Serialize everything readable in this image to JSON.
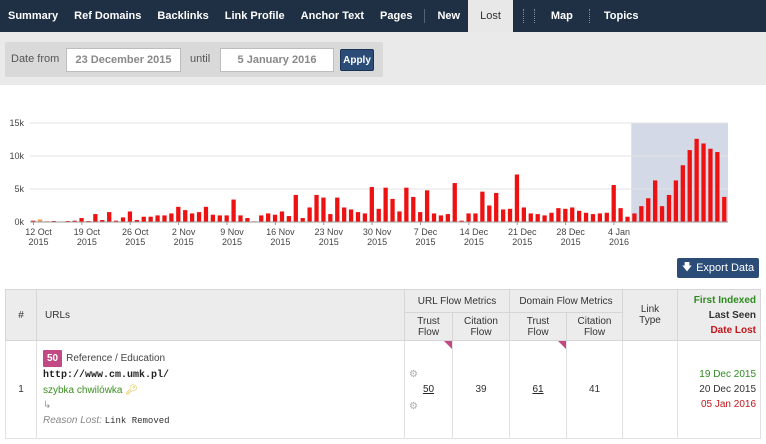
{
  "nav": {
    "items": [
      {
        "label": "Summary",
        "name": "nav-summary"
      },
      {
        "label": "Ref Domains",
        "name": "nav-ref-domains"
      },
      {
        "label": "Backlinks",
        "name": "nav-backlinks"
      },
      {
        "label": "Link Profile",
        "name": "nav-link-profile"
      },
      {
        "label": "Anchor Text",
        "name": "nav-anchor-text"
      },
      {
        "label": "Pages",
        "name": "nav-pages"
      },
      {
        "label": "New",
        "name": "nav-new"
      },
      {
        "label": "Lost",
        "name": "nav-lost"
      },
      {
        "label": "Map",
        "name": "nav-map"
      },
      {
        "label": "Topics",
        "name": "nav-topics"
      }
    ],
    "active": "Lost"
  },
  "filter": {
    "date_from_label": "Date from",
    "date_from_value": "23 December 2015",
    "until_label": "until",
    "until_value": "5 January 2016",
    "apply_label": "Apply"
  },
  "chart_data": {
    "type": "bar",
    "y_ticks": [
      "0k",
      "5k",
      "10k",
      "15k"
    ],
    "ylim": [
      0,
      15000
    ],
    "x_tick_labels": [
      [
        "12 Oct",
        "2015"
      ],
      [
        "19 Oct",
        "2015"
      ],
      [
        "26 Oct",
        "2015"
      ],
      [
        "2 Nov",
        "2015"
      ],
      [
        "9 Nov",
        "2015"
      ],
      [
        "16 Nov",
        "2015"
      ],
      [
        "23 Nov",
        "2015"
      ],
      [
        "30 Nov",
        "2015"
      ],
      [
        "7 Dec",
        "2015"
      ],
      [
        "14 Dec",
        "2015"
      ],
      [
        "21 Dec",
        "2015"
      ],
      [
        "28 Dec",
        "2015"
      ],
      [
        "4 Jan",
        "2016"
      ]
    ],
    "highlight_range": [
      "23 Dec 2015",
      "5 Jan 2016"
    ],
    "values": [
      200,
      400,
      100,
      150,
      50,
      150,
      200,
      600,
      150,
      1200,
      300,
      1500,
      200,
      700,
      1600,
      300,
      800,
      800,
      1000,
      1000,
      1300,
      2300,
      1800,
      1300,
      1500,
      2300,
      1100,
      1000,
      1000,
      3400,
      1000,
      600,
      100,
      1000,
      1300,
      1100,
      1600,
      900,
      4100,
      600,
      2200,
      4100,
      3700,
      1200,
      3700,
      2200,
      1900,
      1500,
      1300,
      5300,
      2000,
      5200,
      3500,
      1600,
      5200,
      3800,
      1500,
      4800,
      1300,
      1000,
      1200,
      5900,
      200,
      1300,
      1300,
      4600,
      2500,
      4400,
      1900,
      2000,
      7200,
      2200,
      1300,
      1200,
      1000,
      1400,
      2100,
      2000,
      2200,
      1700,
      1400,
      1200,
      1300,
      1400,
      5600,
      2100,
      800,
      1300,
      2400,
      3600,
      6300,
      2400,
      4100,
      6300,
      8600,
      10900,
      12600,
      11900,
      11100,
      10600,
      3800
    ],
    "orange_indices": [
      1
    ]
  },
  "export": {
    "label": "Export Data"
  },
  "table": {
    "headers": {
      "num": "#",
      "urls": "URLs",
      "url_flow": "URL Flow Metrics",
      "domain_flow": "Domain Flow Metrics",
      "link_type": "Link Type",
      "first_indexed": "First Indexed",
      "last_seen": "Last Seen",
      "date_lost": "Date Lost",
      "trust_flow": "Trust Flow",
      "citation_flow": "Citation Flow"
    },
    "rows": [
      {
        "num": "1",
        "score": "50",
        "category": "Reference / Education",
        "url": "http://www.cm.umk.pl/",
        "anchor": "szybka chwilówka",
        "reason_label": "Reason Lost:",
        "reason_value": "Link Removed",
        "url_trust_flow": "50",
        "url_citation_flow": "39",
        "domain_trust_flow": "61",
        "domain_citation_flow": "41",
        "link_type": "",
        "first_indexed": "19 Dec 2015",
        "last_seen": "20 Dec 2015",
        "date_lost": "05 Jan 2016"
      }
    ]
  }
}
